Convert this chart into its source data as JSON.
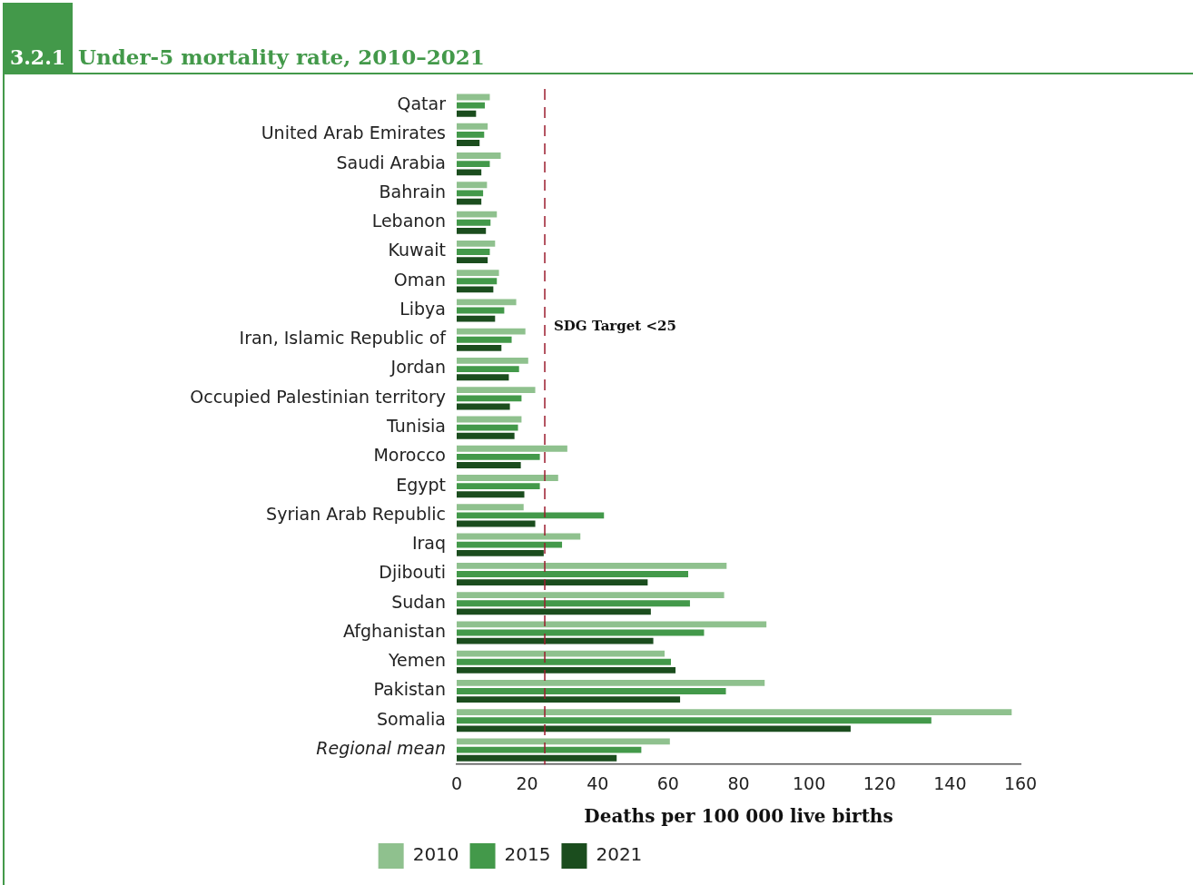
{
  "chart_data": {
    "type": "bar",
    "orientation": "horizontal",
    "title": "Under-5 mortality rate, 2010–2021",
    "annotations": [
      "3.2.1"
    ],
    "xlabel": "Deaths per 100 000 live births",
    "categories": [
      "Qatar",
      "United Arab Emirates",
      "Saudi Arabia",
      "Bahrain",
      "Lebanon",
      "Kuwait",
      "Oman",
      "Libya",
      "Iran, Islamic Republic of",
      "Jordan",
      "Occupied Palestinian territory",
      "Tunisia",
      "Morocco",
      "Egypt",
      "Syrian Arab Republic",
      "Iraq",
      "Djibouti",
      "Sudan",
      "Afghanistan",
      "Yemen",
      "Pakistan",
      "Somalia",
      "Regional mean"
    ],
    "series": [
      {
        "name": "2010",
        "color": "#8fc18e",
        "values": [
          9.4,
          8.8,
          12.5,
          8.6,
          11.4,
          10.9,
          12.0,
          16.9,
          19.5,
          20.3,
          22.3,
          18.4,
          31.4,
          28.8,
          19.0,
          35.1,
          76.6,
          75.9,
          87.9,
          59.0,
          87.4,
          157.5,
          60.5
        ]
      },
      {
        "name": "2015",
        "color": "#43994a",
        "values": [
          8.0,
          7.8,
          9.4,
          7.5,
          9.6,
          9.4,
          11.4,
          13.5,
          15.6,
          17.7,
          18.4,
          17.4,
          23.6,
          23.6,
          41.8,
          29.9,
          65.7,
          66.2,
          70.2,
          60.8,
          76.4,
          134.7,
          52.4
        ]
      },
      {
        "name": "2021",
        "color": "#1b4d1e",
        "values": [
          5.5,
          6.5,
          7.0,
          7.0,
          8.3,
          8.8,
          10.4,
          10.9,
          12.7,
          14.8,
          15.1,
          16.4,
          18.2,
          19.2,
          22.3,
          24.7,
          54.2,
          55.1,
          55.8,
          62.1,
          63.4,
          111.8,
          45.4
        ]
      }
    ],
    "xlim": [
      0,
      160
    ],
    "xticks": [
      0,
      20,
      40,
      60,
      80,
      100,
      120,
      140,
      160
    ],
    "grid": false,
    "legend": "bottom",
    "ref_lines": [
      {
        "axis": "x",
        "value": 25,
        "label": "SDG Target <25",
        "color": "#9b1c2e",
        "line_style": "dashed"
      }
    ]
  }
}
